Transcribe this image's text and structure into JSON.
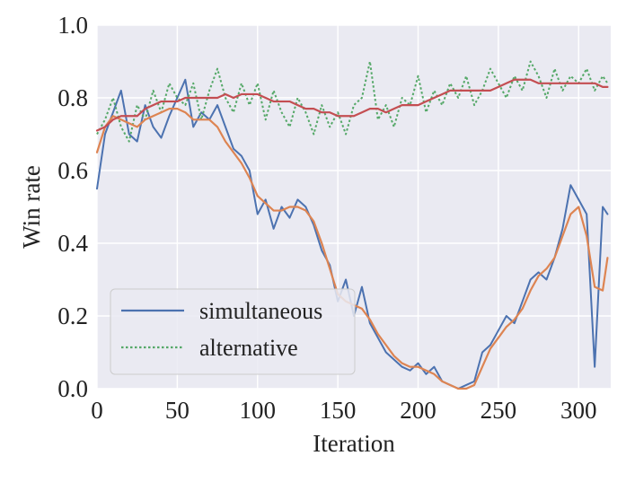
{
  "chart_data": {
    "type": "line",
    "title": "",
    "xlabel": "Iteration",
    "ylabel": "Win rate",
    "xlim": [
      0,
      320
    ],
    "ylim": [
      0.0,
      1.0
    ],
    "xticks": [
      0,
      50,
      100,
      150,
      200,
      250,
      300
    ],
    "yticks": [
      0.0,
      0.2,
      0.4,
      0.6,
      0.8,
      1.0
    ],
    "xtick_labels": [
      "0",
      "50",
      "100",
      "150",
      "200",
      "250",
      "300"
    ],
    "ytick_labels": [
      "0.0",
      "0.2",
      "0.4",
      "0.6",
      "0.8",
      "1.0"
    ],
    "grid": true,
    "legend_position": "lower-left",
    "colors": {
      "plot_background": "#eaeaf2",
      "grid": "#ffffff",
      "simultaneous": "#4c72b0",
      "alternative": "#55a868",
      "simultaneous_smoothed": "#dd8452",
      "alternative_smoothed": "#c44e52"
    },
    "series": [
      {
        "name": "simultaneous",
        "style": "solid",
        "x": [
          0,
          5,
          10,
          15,
          20,
          25,
          30,
          35,
          40,
          45,
          50,
          55,
          60,
          65,
          70,
          75,
          80,
          85,
          90,
          95,
          100,
          105,
          110,
          115,
          120,
          125,
          130,
          135,
          140,
          145,
          150,
          155,
          160,
          165,
          170,
          175,
          180,
          185,
          190,
          195,
          200,
          205,
          210,
          215,
          220,
          225,
          230,
          235,
          240,
          245,
          250,
          255,
          260,
          265,
          270,
          275,
          280,
          285,
          290,
          295,
          300,
          305,
          310,
          315,
          318
        ],
        "y": [
          0.55,
          0.7,
          0.76,
          0.82,
          0.7,
          0.68,
          0.78,
          0.72,
          0.69,
          0.75,
          0.8,
          0.85,
          0.72,
          0.76,
          0.74,
          0.78,
          0.72,
          0.66,
          0.64,
          0.6,
          0.48,
          0.52,
          0.44,
          0.5,
          0.47,
          0.52,
          0.5,
          0.45,
          0.38,
          0.34,
          0.24,
          0.3,
          0.2,
          0.28,
          0.18,
          0.14,
          0.1,
          0.08,
          0.06,
          0.05,
          0.07,
          0.04,
          0.06,
          0.02,
          0.01,
          0.0,
          0.01,
          0.02,
          0.1,
          0.12,
          0.16,
          0.2,
          0.18,
          0.24,
          0.3,
          0.32,
          0.3,
          0.36,
          0.44,
          0.56,
          0.52,
          0.48,
          0.06,
          0.5,
          0.48
        ]
      },
      {
        "name": "alternative",
        "style": "dotted",
        "x": [
          0,
          5,
          10,
          15,
          20,
          25,
          30,
          35,
          40,
          45,
          50,
          55,
          60,
          65,
          70,
          75,
          80,
          85,
          90,
          95,
          100,
          105,
          110,
          115,
          120,
          125,
          130,
          135,
          140,
          145,
          150,
          155,
          160,
          165,
          170,
          175,
          180,
          185,
          190,
          195,
          200,
          205,
          210,
          215,
          220,
          225,
          230,
          235,
          240,
          245,
          250,
          255,
          260,
          265,
          270,
          275,
          280,
          285,
          290,
          295,
          300,
          305,
          310,
          315,
          318
        ],
        "y": [
          0.7,
          0.74,
          0.8,
          0.72,
          0.68,
          0.78,
          0.74,
          0.82,
          0.76,
          0.84,
          0.8,
          0.78,
          0.84,
          0.74,
          0.82,
          0.88,
          0.8,
          0.76,
          0.84,
          0.78,
          0.84,
          0.74,
          0.82,
          0.76,
          0.72,
          0.8,
          0.76,
          0.7,
          0.78,
          0.72,
          0.76,
          0.7,
          0.78,
          0.8,
          0.9,
          0.74,
          0.78,
          0.72,
          0.8,
          0.78,
          0.86,
          0.76,
          0.82,
          0.78,
          0.84,
          0.8,
          0.86,
          0.78,
          0.82,
          0.88,
          0.84,
          0.8,
          0.86,
          0.82,
          0.9,
          0.86,
          0.8,
          0.88,
          0.82,
          0.86,
          0.84,
          0.88,
          0.82,
          0.86,
          0.84
        ]
      },
      {
        "style": "solid-smooth",
        "role": "simultaneous_smoothed",
        "x": [
          0,
          5,
          10,
          15,
          20,
          25,
          30,
          35,
          40,
          45,
          50,
          55,
          60,
          65,
          70,
          75,
          80,
          85,
          90,
          95,
          100,
          105,
          110,
          115,
          120,
          125,
          130,
          135,
          140,
          145,
          150,
          155,
          160,
          165,
          170,
          175,
          180,
          185,
          190,
          195,
          200,
          205,
          210,
          215,
          220,
          225,
          230,
          235,
          240,
          245,
          250,
          255,
          260,
          265,
          270,
          275,
          280,
          285,
          290,
          295,
          300,
          305,
          310,
          315,
          318
        ],
        "y": [
          0.65,
          0.72,
          0.75,
          0.74,
          0.73,
          0.72,
          0.74,
          0.75,
          0.76,
          0.77,
          0.77,
          0.76,
          0.74,
          0.74,
          0.74,
          0.72,
          0.68,
          0.65,
          0.62,
          0.58,
          0.53,
          0.51,
          0.49,
          0.49,
          0.5,
          0.5,
          0.49,
          0.46,
          0.4,
          0.33,
          0.26,
          0.24,
          0.23,
          0.22,
          0.19,
          0.15,
          0.12,
          0.09,
          0.07,
          0.06,
          0.06,
          0.05,
          0.04,
          0.02,
          0.01,
          0.0,
          0.0,
          0.01,
          0.06,
          0.11,
          0.14,
          0.17,
          0.19,
          0.22,
          0.27,
          0.31,
          0.33,
          0.36,
          0.42,
          0.48,
          0.5,
          0.42,
          0.28,
          0.27,
          0.36
        ]
      },
      {
        "style": "solid-smooth",
        "role": "alternative_smoothed",
        "x": [
          0,
          5,
          10,
          15,
          20,
          25,
          30,
          35,
          40,
          45,
          50,
          55,
          60,
          65,
          70,
          75,
          80,
          85,
          90,
          95,
          100,
          105,
          110,
          115,
          120,
          125,
          130,
          135,
          140,
          145,
          150,
          155,
          160,
          165,
          170,
          175,
          180,
          185,
          190,
          195,
          200,
          205,
          210,
          215,
          220,
          225,
          230,
          235,
          240,
          245,
          250,
          255,
          260,
          265,
          270,
          275,
          280,
          285,
          290,
          295,
          300,
          305,
          310,
          315,
          318
        ],
        "y": [
          0.71,
          0.72,
          0.74,
          0.75,
          0.75,
          0.75,
          0.77,
          0.78,
          0.79,
          0.79,
          0.79,
          0.8,
          0.8,
          0.8,
          0.8,
          0.8,
          0.81,
          0.8,
          0.81,
          0.81,
          0.81,
          0.8,
          0.79,
          0.79,
          0.79,
          0.78,
          0.77,
          0.77,
          0.76,
          0.76,
          0.75,
          0.75,
          0.75,
          0.76,
          0.77,
          0.77,
          0.76,
          0.77,
          0.78,
          0.78,
          0.78,
          0.79,
          0.8,
          0.81,
          0.82,
          0.82,
          0.82,
          0.82,
          0.82,
          0.82,
          0.83,
          0.84,
          0.85,
          0.85,
          0.85,
          0.84,
          0.84,
          0.84,
          0.84,
          0.84,
          0.84,
          0.84,
          0.84,
          0.83,
          0.83
        ]
      }
    ]
  }
}
